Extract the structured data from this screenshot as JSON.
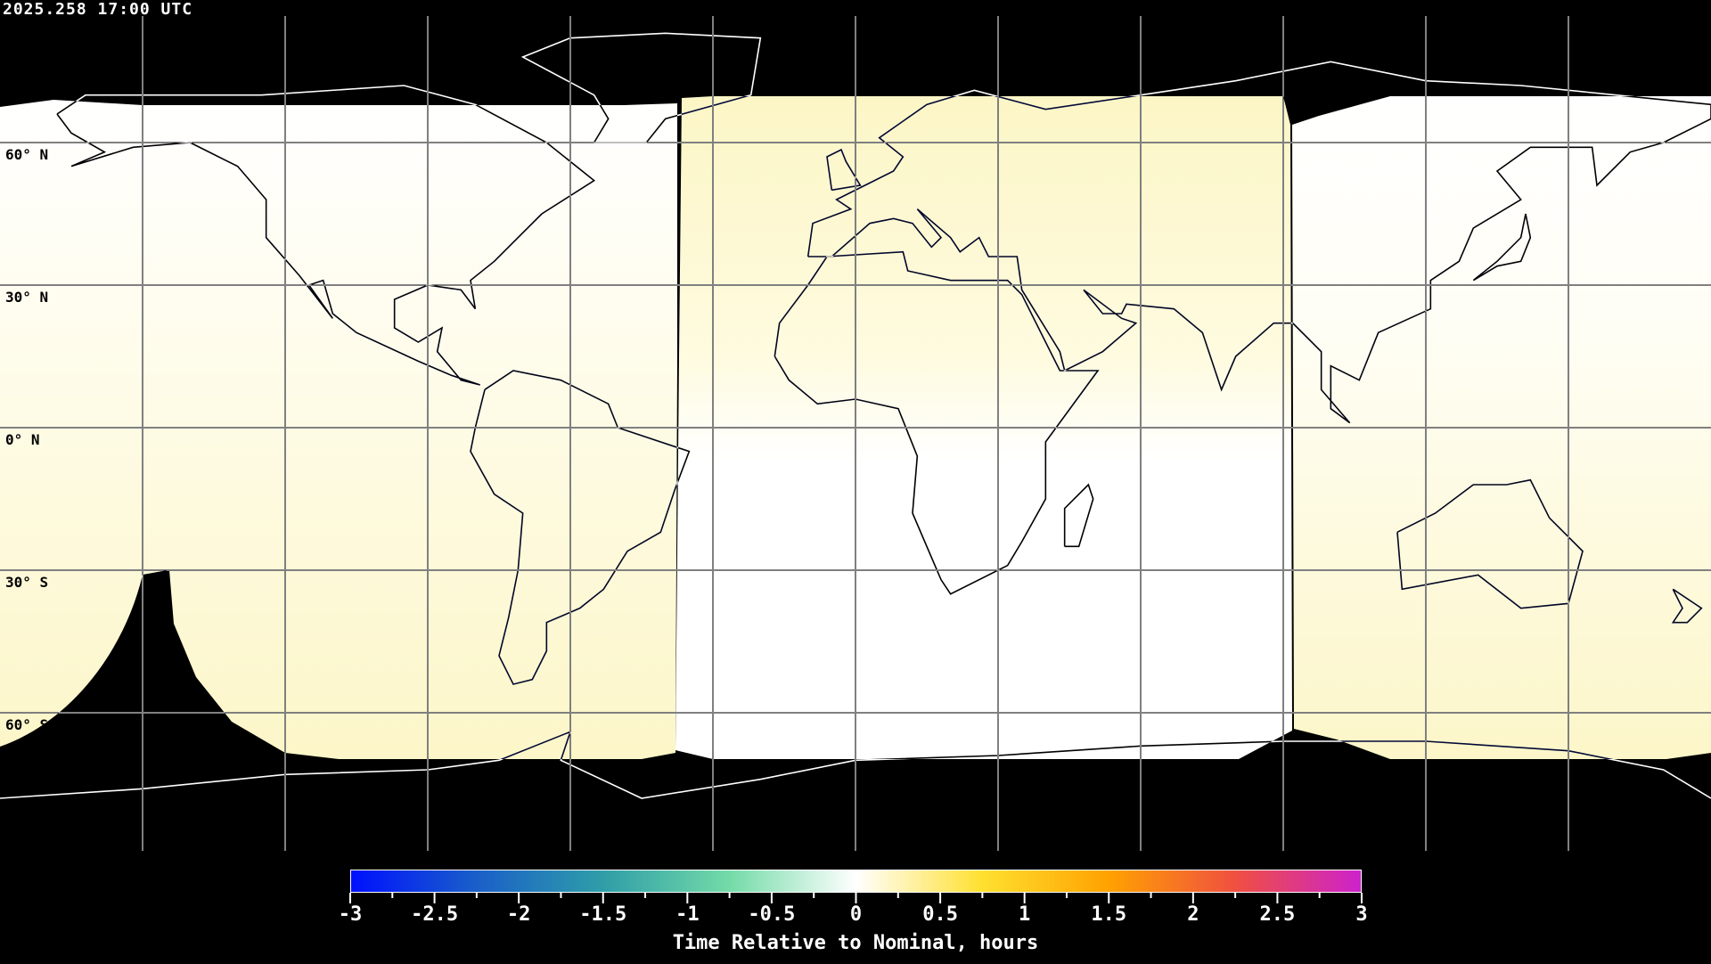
{
  "header": {
    "timestamp": "2025.258 17:00 UTC"
  },
  "map": {
    "projection": "equirectangular",
    "latitude_labels": [
      "60° N",
      "30° N",
      "0° N",
      "30° S",
      "60° S"
    ],
    "grid_spacing_degrees": 30,
    "colors": {
      "night": "#000000",
      "white_zone": "#ffffff",
      "yellow_zone": "#fcf7cc",
      "coastline_dark": "#000000",
      "coastline_light": "#ffffff"
    }
  },
  "colorbar": {
    "title": "Time Relative to Nominal, hours",
    "min": -3,
    "max": 3,
    "tick_labels": [
      "-3",
      "-2.5",
      "-2",
      "-1.5",
      "-1",
      "-0.5",
      "0",
      "0.5",
      "1",
      "1.5",
      "2",
      "2.5",
      "3"
    ],
    "colors": [
      "#0010ff",
      "#1a60c8",
      "#2f9ea8",
      "#74dba8",
      "#ffffff",
      "#ffe030",
      "#ffa200",
      "#f05040",
      "#cc22cc"
    ]
  }
}
